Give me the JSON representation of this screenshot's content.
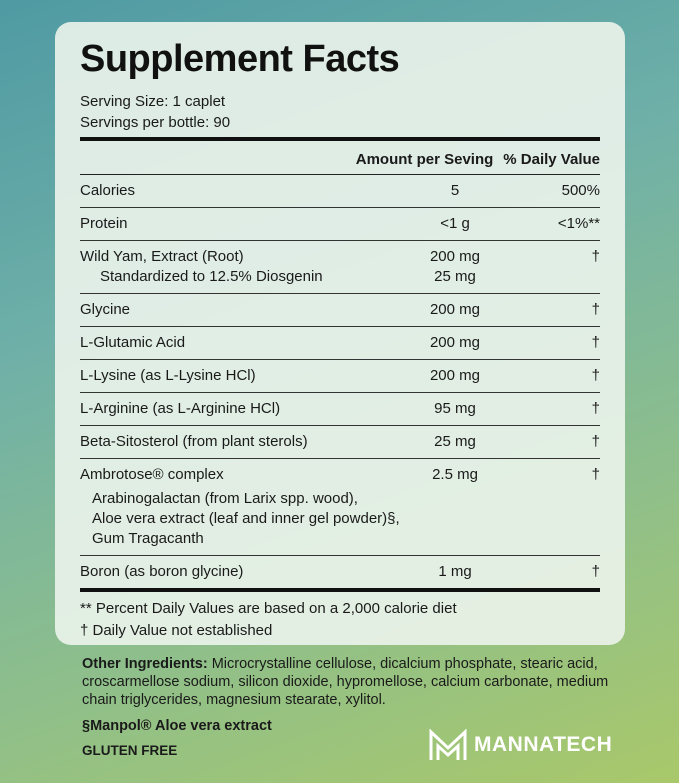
{
  "label": {
    "title": "Supplement Facts",
    "serving_size": "Serving Size: 1 caplet",
    "servings_per_bottle": "Servings per bottle: 90",
    "header": {
      "amount": "Amount per Seving",
      "daily_value": "% Daily Value"
    },
    "rows": [
      {
        "name": "Calories",
        "amount": "5",
        "daily_value": "500%"
      },
      {
        "name": "Protein",
        "amount": "<1 g",
        "daily_value": "<1%**"
      },
      {
        "name": "Wild Yam, Extract (Root)",
        "amount": "200 mg",
        "daily_value": "†",
        "sub": [
          {
            "name": "Standardized to 12.5% Diosgenin",
            "amount": "25 mg"
          }
        ]
      },
      {
        "name": "Glycine",
        "amount": "200 mg",
        "daily_value": "†"
      },
      {
        "name": "L-Glutamic Acid",
        "amount": "200 mg",
        "daily_value": "†"
      },
      {
        "name": "L-Lysine (as L-Lysine HCl)",
        "amount": "200 mg",
        "daily_value": "†"
      },
      {
        "name": "L-Arginine (as L-Arginine HCl)",
        "amount": "95 mg",
        "daily_value": "†"
      },
      {
        "name": "Beta-Sitosterol (from plant sterols)",
        "amount": "25 mg",
        "daily_value": "†"
      },
      {
        "name": "Ambrotose® complex",
        "amount": "2.5 mg",
        "daily_value": "†",
        "details": [
          "Arabinogalactan (from Larix spp. wood),",
          "Aloe vera extract (leaf and inner gel powder)§,",
          "Gum Tragacanth"
        ]
      },
      {
        "name": "Boron (as boron glycine)",
        "amount": "1 mg",
        "daily_value": "†"
      }
    ],
    "footnotes": [
      "** Percent Daily Values are based on a 2,000 calorie diet",
      "† Daily Value not established"
    ]
  },
  "other_ingredients": {
    "label": "Other Ingredients:",
    "text": "Microcrystalline cellulose, dicalcium phosphate, stearic acid, croscarmellose sodium, silicon dioxide, hypromellose, calcium carbonate, medium chain triglycerides, magnesium stearate, xylitol."
  },
  "manpol_note": "§Manpol® Aloe vera extract",
  "gluten_free": "GLUTEN FREE",
  "brand": "MANNATECH"
}
